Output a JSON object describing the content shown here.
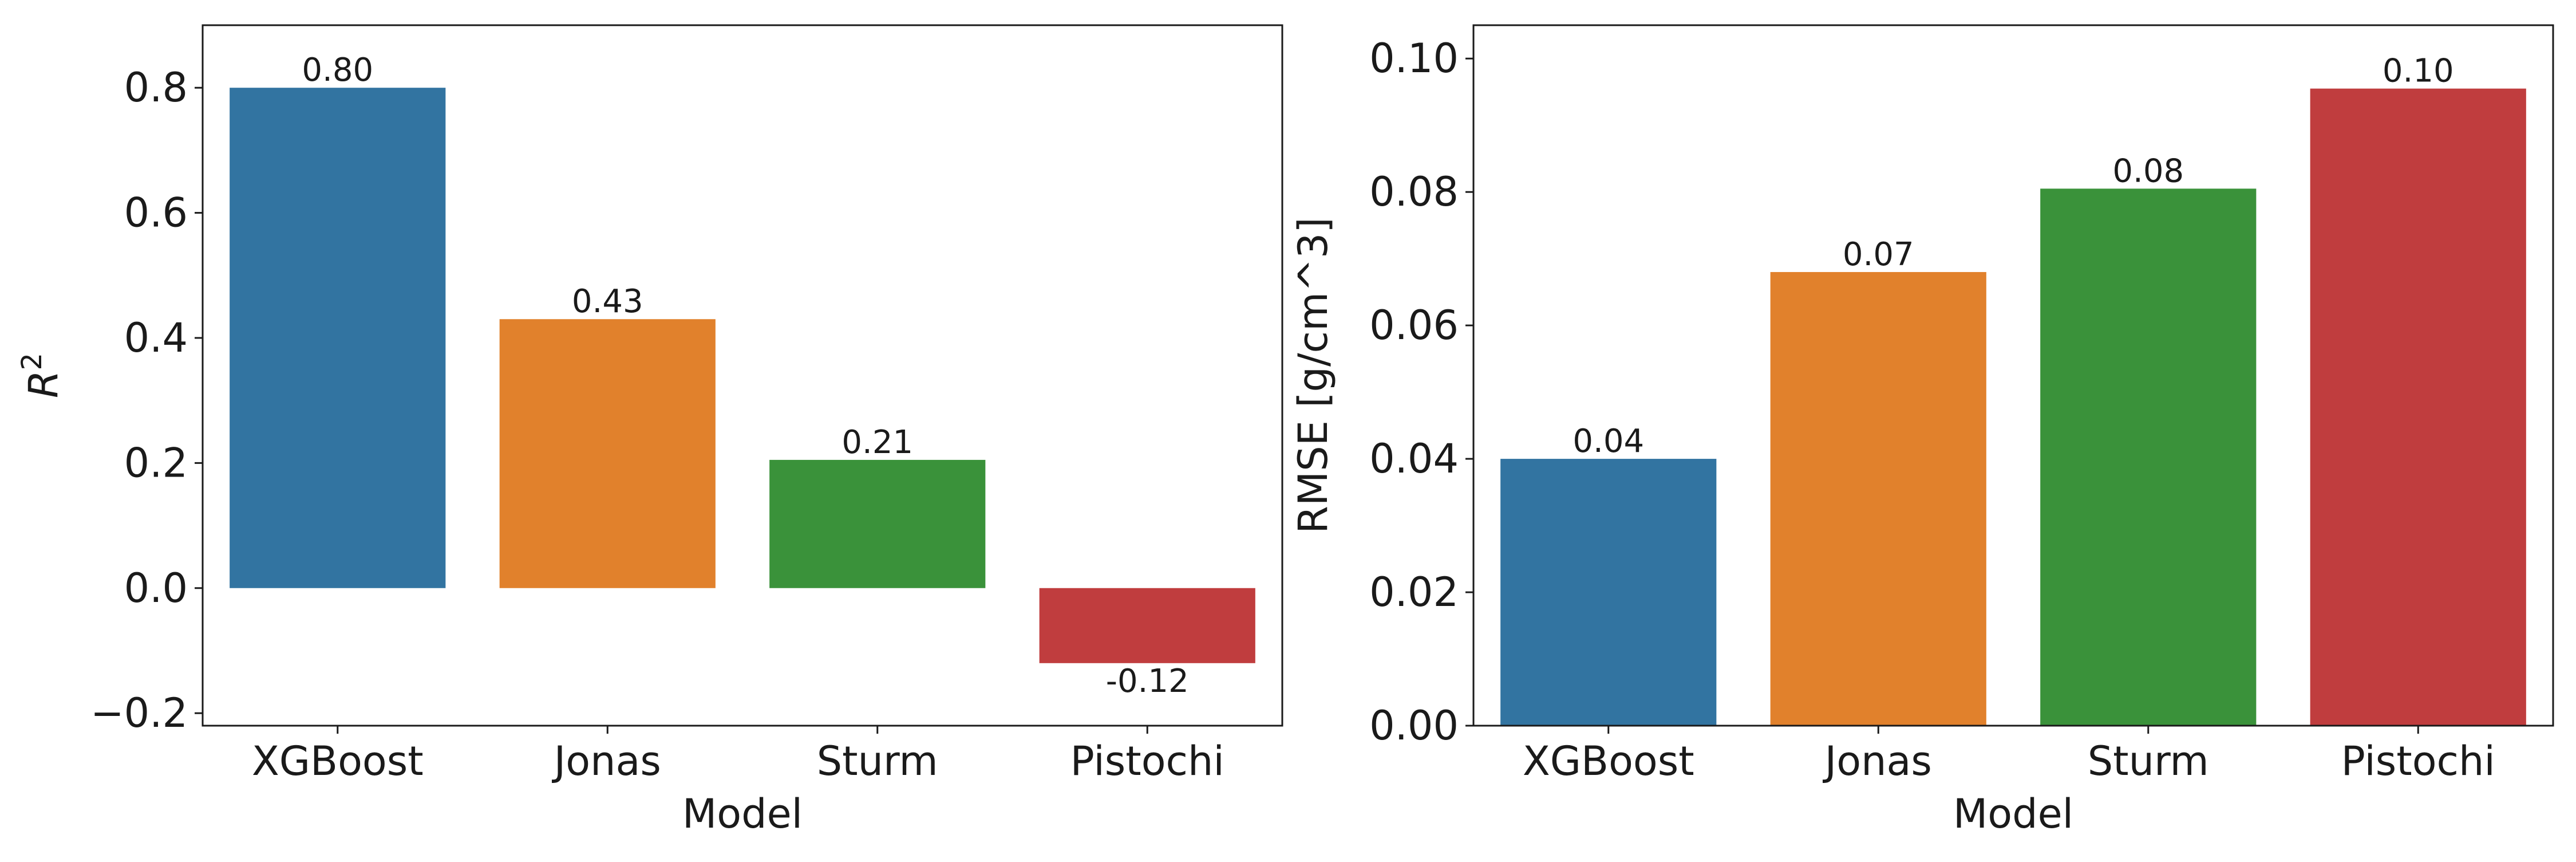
{
  "chart_data": [
    {
      "type": "bar",
      "title": "",
      "xlabel": "Model",
      "ylabel": "R^2",
      "ylim": [
        -0.22,
        0.9
      ],
      "yticks": [
        -0.2,
        0.0,
        0.2,
        0.4,
        0.6,
        0.8
      ],
      "ytick_labels": [
        "−0.2",
        "0.0",
        "0.2",
        "0.4",
        "0.6",
        "0.8"
      ],
      "categories": [
        "XGBoost",
        "Jonas",
        "Sturm",
        "Pistochi"
      ],
      "values": [
        0.8,
        0.43,
        0.205,
        -0.12
      ],
      "value_labels": [
        "0.80",
        "0.43",
        "0.21",
        "-0.12"
      ],
      "colors": [
        "#3274a1",
        "#e1812c",
        "#3a923a",
        "#c03d3e"
      ],
      "grid": false,
      "legend": "none"
    },
    {
      "type": "bar",
      "title": "",
      "xlabel": "Model",
      "ylabel": "RMSE [g/cm^3]",
      "ylim": [
        0.0,
        0.105
      ],
      "yticks": [
        0.0,
        0.02,
        0.04,
        0.06,
        0.08,
        0.1
      ],
      "ytick_labels": [
        "0.00",
        "0.02",
        "0.04",
        "0.06",
        "0.08",
        "0.10"
      ],
      "categories": [
        "XGBoost",
        "Jonas",
        "Sturm",
        "Pistochi"
      ],
      "values": [
        0.04,
        0.068,
        0.0805,
        0.0955
      ],
      "value_labels": [
        "0.04",
        "0.07",
        "0.08",
        "0.10"
      ],
      "colors": [
        "#3274a1",
        "#e1812c",
        "#3a923a",
        "#c03d3e"
      ],
      "grid": false,
      "legend": "none"
    }
  ]
}
